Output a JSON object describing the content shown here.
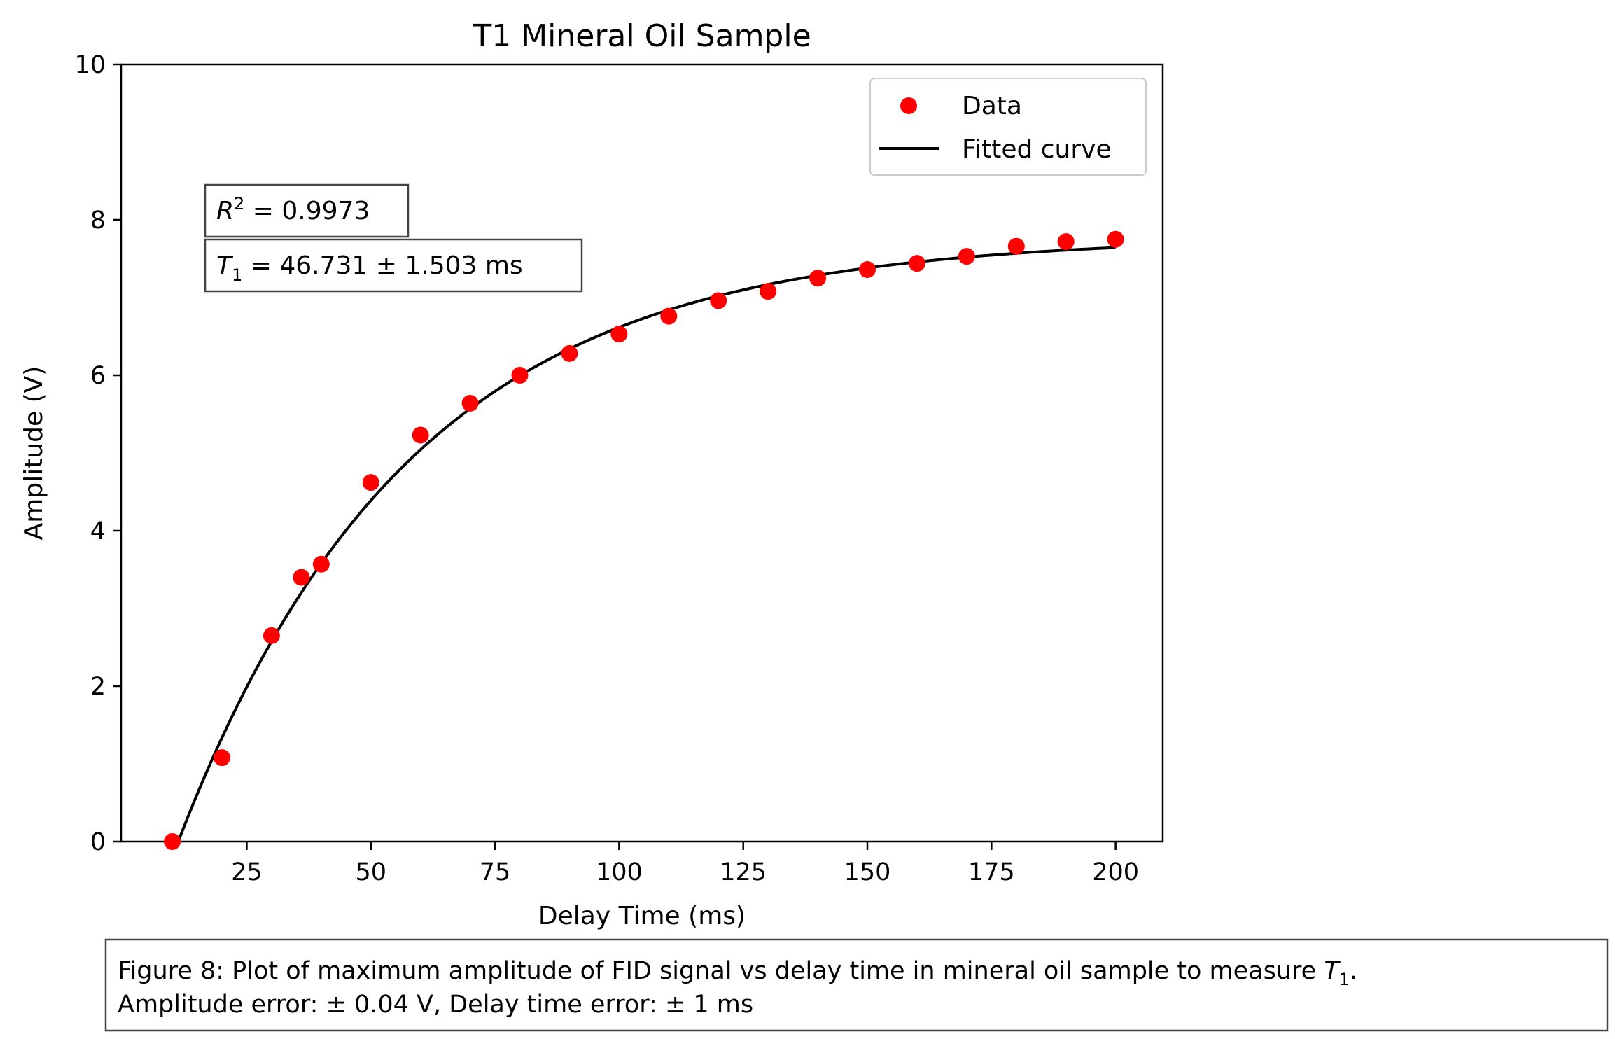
{
  "chart_data": {
    "type": "scatter",
    "title": "T1 Mineral Oil Sample",
    "xlabel": "Delay Time (ms)",
    "ylabel": "Amplitude (V)",
    "xlim": [
      -0.3,
      209.5
    ],
    "ylim": [
      0,
      10
    ],
    "xticks": [
      25,
      50,
      75,
      100,
      125,
      150,
      175,
      200
    ],
    "yticks": [
      0,
      2,
      4,
      6,
      8,
      10
    ],
    "grid": false,
    "legend_position": "top-right",
    "series": [
      {
        "name": "Data",
        "kind": "scatter",
        "color": "#ff0000",
        "x": [
          10,
          20,
          30,
          36,
          40,
          50,
          60,
          70,
          80,
          90,
          100,
          110,
          120,
          130,
          140,
          150,
          160,
          170,
          180,
          190,
          200
        ],
        "y": [
          0.0,
          1.08,
          2.65,
          3.4,
          3.57,
          4.62,
          5.23,
          5.64,
          6.0,
          6.28,
          6.53,
          6.76,
          6.96,
          7.08,
          7.25,
          7.36,
          7.44,
          7.53,
          7.66,
          7.72,
          7.75
        ]
      },
      {
        "name": "Fitted curve",
        "kind": "line",
        "color": "#000000",
        "model": {
          "amplitude": 7.78,
          "t1": 46.731,
          "t0": 11.2
        },
        "x_range": [
          11.2,
          200
        ]
      }
    ],
    "annotations": [
      {
        "id": "r2",
        "var": "R",
        "sup": "2",
        "text": " = 0.9973"
      },
      {
        "id": "t1",
        "var": "T",
        "sub": "1",
        "text": " = 46.731 ± 1.503 ms"
      }
    ]
  },
  "caption": {
    "line1": "Figure 8: Plot of maximum amplitude of FID signal vs delay time in mineral oil sample to measure ",
    "line1_var": "T",
    "line1_sub": "1",
    "line1_end": ".",
    "line2": "Amplitude error: ± 0.04 V, Delay time error: ± 1 ms"
  }
}
